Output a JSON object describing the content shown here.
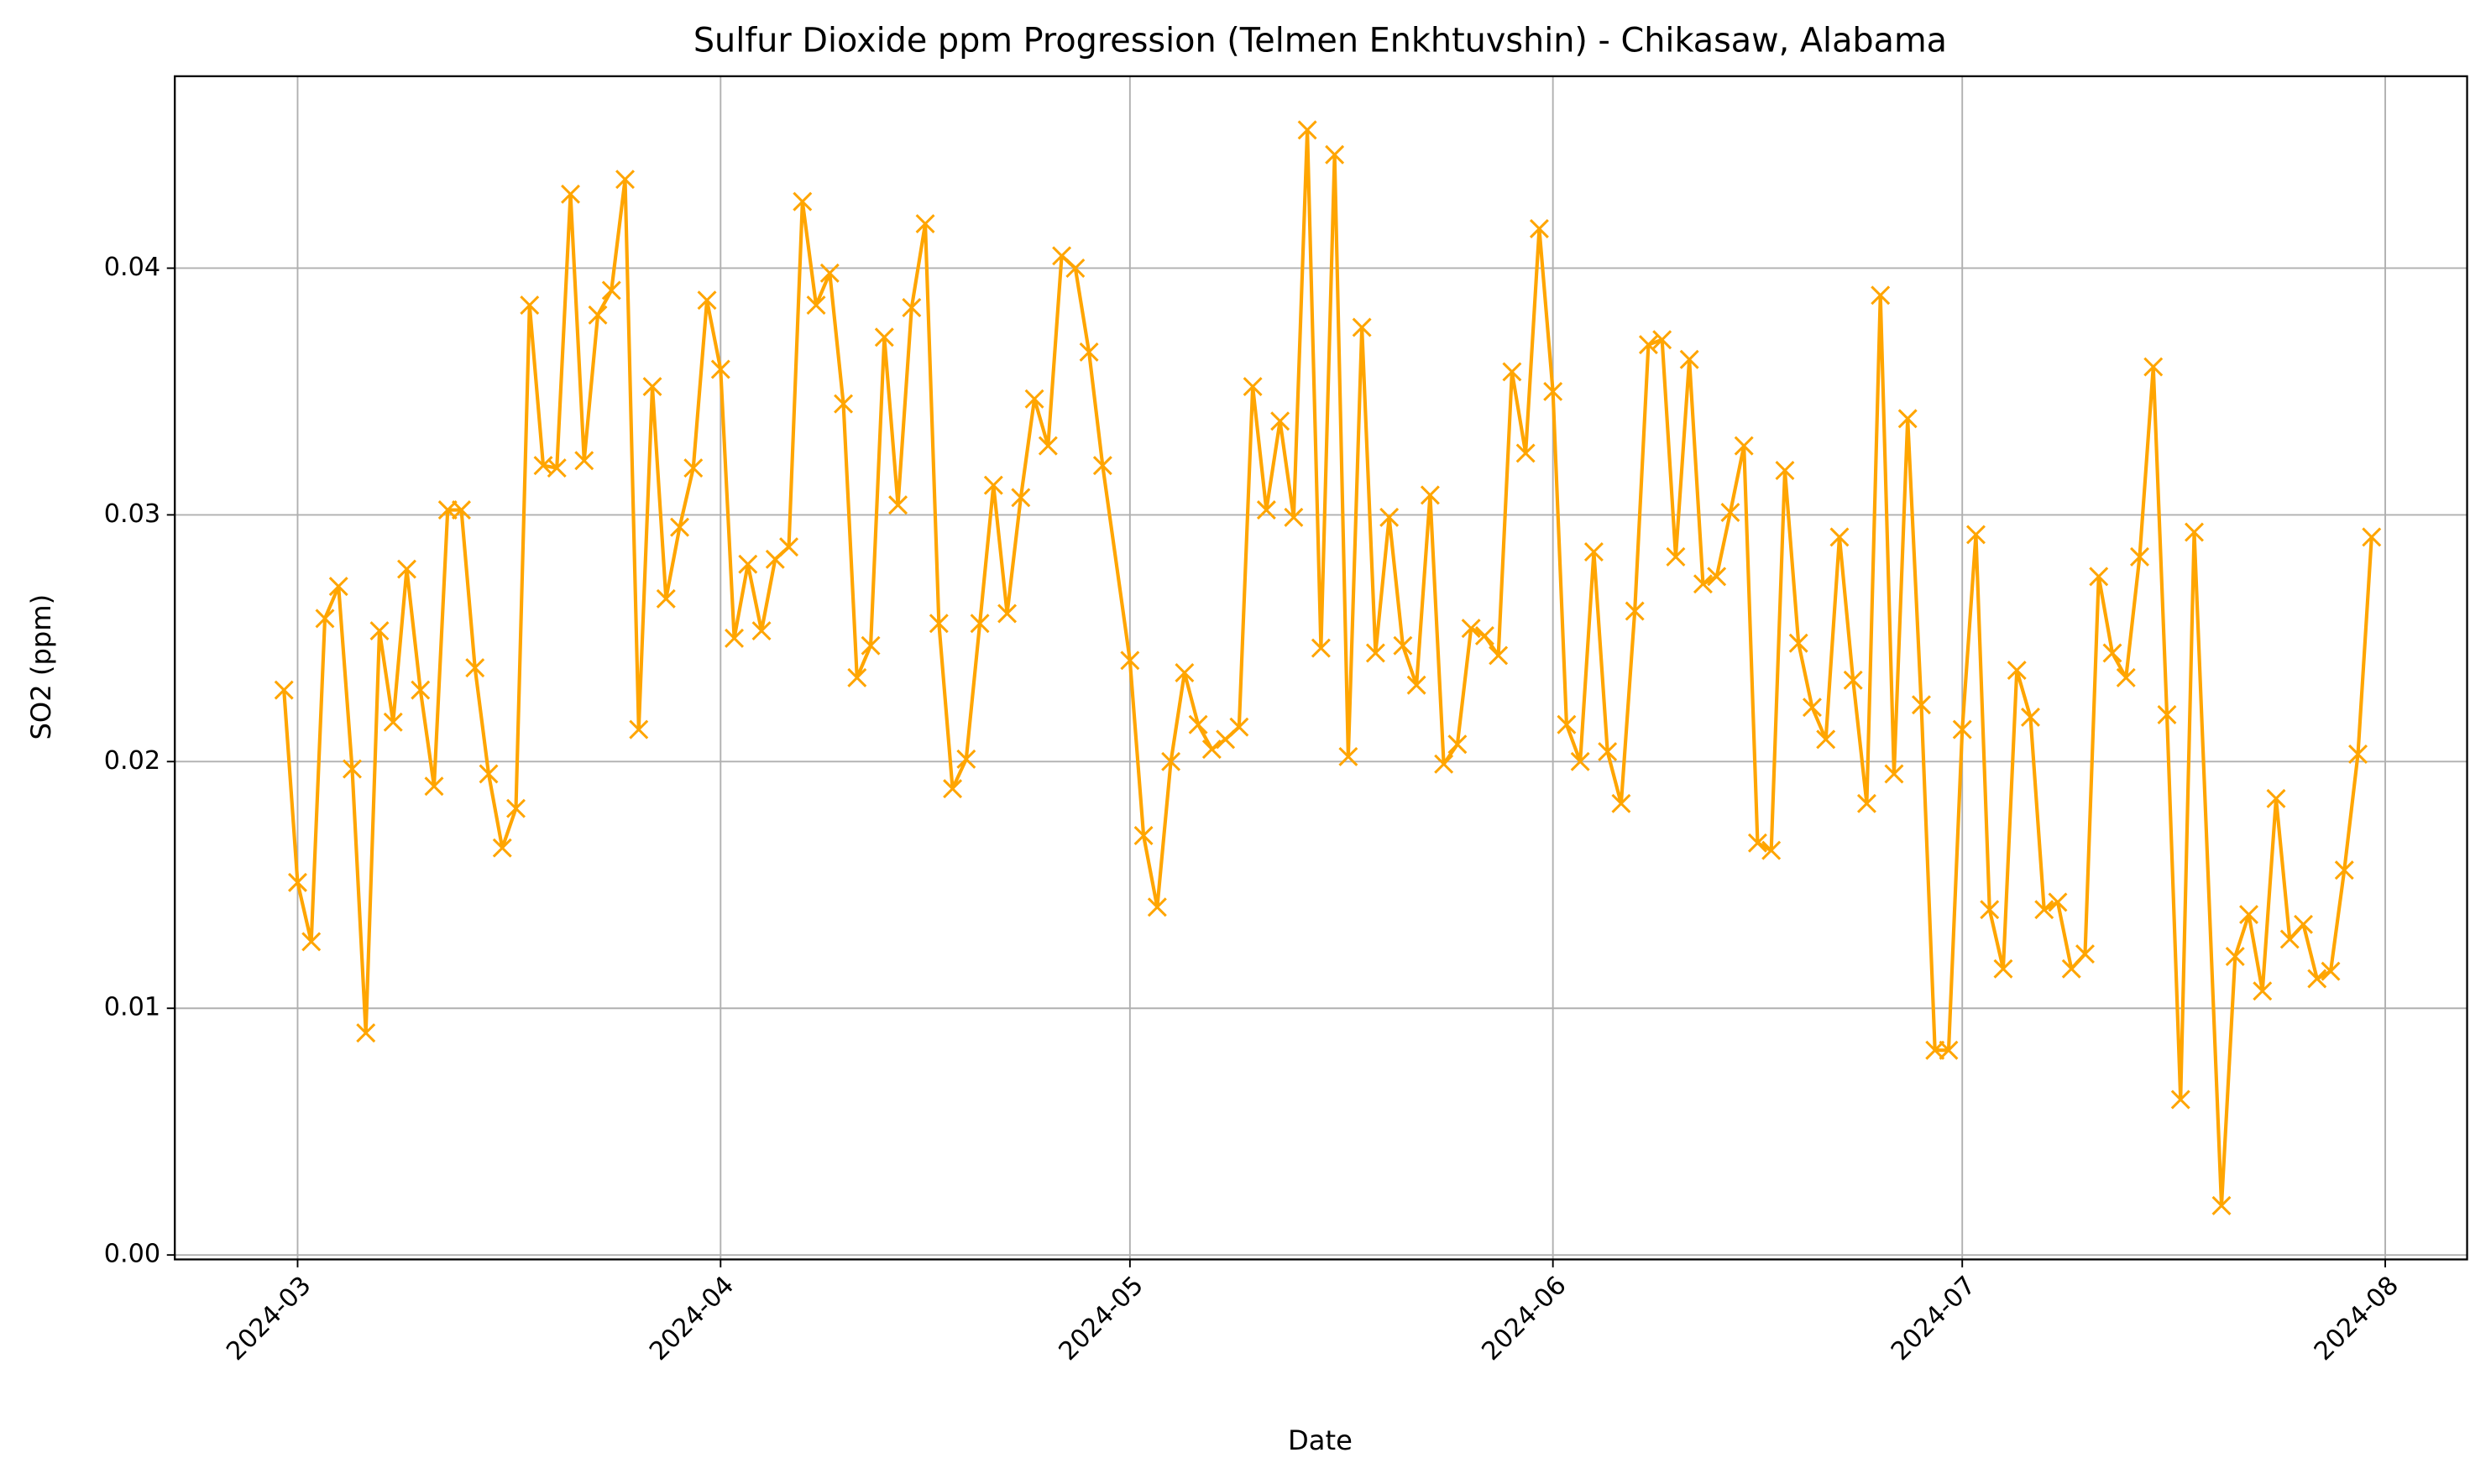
{
  "chart_data": {
    "type": "line",
    "title": "Sulfur Dioxide ppm Progression (Telmen Enkhtuvshin) - Chikasaw, Alabama",
    "xlabel": "Date",
    "ylabel": "SO2 (ppm)",
    "x": [
      "2024-02-29",
      "2024-03-01",
      "2024-03-02",
      "2024-03-03",
      "2024-03-04",
      "2024-03-05",
      "2024-03-06",
      "2024-03-07",
      "2024-03-08",
      "2024-03-09",
      "2024-03-10",
      "2024-03-11",
      "2024-03-12",
      "2024-03-13",
      "2024-03-14",
      "2024-03-15",
      "2024-03-16",
      "2024-03-17",
      "2024-03-18",
      "2024-03-19",
      "2024-03-20",
      "2024-03-21",
      "2024-03-22",
      "2024-03-23",
      "2024-03-24",
      "2024-03-25",
      "2024-03-26",
      "2024-03-27",
      "2024-03-28",
      "2024-03-29",
      "2024-03-30",
      "2024-03-31",
      "2024-04-01",
      "2024-04-02",
      "2024-04-03",
      "2024-04-04",
      "2024-04-05",
      "2024-04-06",
      "2024-04-07",
      "2024-04-08",
      "2024-04-09",
      "2024-04-10",
      "2024-04-11",
      "2024-04-12",
      "2024-04-13",
      "2024-04-14",
      "2024-04-15",
      "2024-04-16",
      "2024-04-17",
      "2024-04-18",
      "2024-04-19",
      "2024-04-20",
      "2024-04-21",
      "2024-04-22",
      "2024-04-23",
      "2024-04-24",
      "2024-04-25",
      "2024-04-26",
      "2024-04-27",
      "2024-04-28",
      "2024-04-29",
      "2024-05-01",
      "2024-05-02",
      "2024-05-03",
      "2024-05-04",
      "2024-05-05",
      "2024-05-06",
      "2024-05-07",
      "2024-05-08",
      "2024-05-09",
      "2024-05-10",
      "2024-05-11",
      "2024-05-12",
      "2024-05-13",
      "2024-05-14",
      "2024-05-15",
      "2024-05-16",
      "2024-05-17",
      "2024-05-18",
      "2024-05-19",
      "2024-05-20",
      "2024-05-21",
      "2024-05-22",
      "2024-05-23",
      "2024-05-24",
      "2024-05-25",
      "2024-05-26",
      "2024-05-27",
      "2024-05-28",
      "2024-05-29",
      "2024-05-30",
      "2024-05-31",
      "2024-06-01",
      "2024-06-02",
      "2024-06-03",
      "2024-06-04",
      "2024-06-05",
      "2024-06-06",
      "2024-06-07",
      "2024-06-08",
      "2024-06-09",
      "2024-06-10",
      "2024-06-11",
      "2024-06-12",
      "2024-06-13",
      "2024-06-14",
      "2024-06-15",
      "2024-06-16",
      "2024-06-17",
      "2024-06-18",
      "2024-06-19",
      "2024-06-20",
      "2024-06-21",
      "2024-06-22",
      "2024-06-23",
      "2024-06-24",
      "2024-06-25",
      "2024-06-26",
      "2024-06-27",
      "2024-06-28",
      "2024-06-29",
      "2024-06-30",
      "2024-07-01",
      "2024-07-02",
      "2024-07-03",
      "2024-07-04",
      "2024-07-05",
      "2024-07-06",
      "2024-07-07",
      "2024-07-08",
      "2024-07-09",
      "2024-07-10",
      "2024-07-11",
      "2024-07-12",
      "2024-07-13",
      "2024-07-14",
      "2024-07-15",
      "2024-07-16",
      "2024-07-17",
      "2024-07-18",
      "2024-07-20",
      "2024-07-21",
      "2024-07-22",
      "2024-07-23",
      "2024-07-24",
      "2024-07-25",
      "2024-07-26",
      "2024-07-27",
      "2024-07-28",
      "2024-07-29",
      "2024-07-30",
      "2024-07-31"
    ],
    "values": [
      0.0229,
      0.0151,
      0.0127,
      0.0258,
      0.0271,
      0.0197,
      0.009,
      0.0253,
      0.0216,
      0.0278,
      0.0229,
      0.019,
      0.0302,
      0.0302,
      0.0238,
      0.0195,
      0.0165,
      0.0181,
      0.0385,
      0.032,
      0.0319,
      0.043,
      0.0322,
      0.0381,
      0.0391,
      0.0436,
      0.0213,
      0.0352,
      0.0266,
      0.0295,
      0.0319,
      0.0387,
      0.0359,
      0.025,
      0.028,
      0.0253,
      0.0282,
      0.0287,
      0.0427,
      0.0385,
      0.0398,
      0.0345,
      0.0234,
      0.0247,
      0.0372,
      0.0304,
      0.0384,
      0.0418,
      0.0256,
      0.0189,
      0.0201,
      0.0256,
      0.0312,
      0.026,
      0.0307,
      0.0347,
      0.0328,
      0.0405,
      0.04,
      0.0366,
      0.032,
      0.0241,
      0.017,
      0.0141,
      0.02,
      0.0236,
      0.0215,
      0.0205,
      0.0209,
      0.0214,
      0.0352,
      0.0302,
      0.0338,
      0.0299,
      0.0456,
      0.0246,
      0.0446,
      0.0202,
      0.0376,
      0.0244,
      0.0299,
      0.0247,
      0.0231,
      0.0308,
      0.0199,
      0.0207,
      0.0254,
      0.0251,
      0.0243,
      0.0358,
      0.0325,
      0.0416,
      0.035,
      0.0215,
      0.02,
      0.0285,
      0.0204,
      0.0183,
      0.0261,
      0.0369,
      0.0371,
      0.0283,
      0.0363,
      0.0272,
      0.0275,
      0.0301,
      0.0328,
      0.0167,
      0.0164,
      0.0318,
      0.0248,
      0.0222,
      0.0209,
      0.0291,
      0.0233,
      0.0183,
      0.0389,
      0.0195,
      0.0339,
      0.0223,
      0.0083,
      0.0083,
      0.0213,
      0.0292,
      0.014,
      0.0116,
      0.0237,
      0.0218,
      0.014,
      0.0143,
      0.0116,
      0.0122,
      0.0275,
      0.0244,
      0.0234,
      0.0283,
      0.036,
      0.0219,
      0.0063,
      0.0293,
      0.002,
      0.0121,
      0.0138,
      0.0107,
      0.0185,
      0.0128,
      0.0134,
      0.0112,
      0.0115,
      0.0156,
      0.0203,
      0.0291
    ],
    "color": "#ffa500",
    "marker": "x",
    "xlim": [
      "2024-02-21",
      "2024-08-07"
    ],
    "xticks": [
      {
        "value": "2024-03-01",
        "label": "2024-03"
      },
      {
        "value": "2024-04-01",
        "label": "2024-04"
      },
      {
        "value": "2024-05-01",
        "label": "2024-05"
      },
      {
        "value": "2024-06-01",
        "label": "2024-06"
      },
      {
        "value": "2024-07-01",
        "label": "2024-07"
      },
      {
        "value": "2024-08-01",
        "label": "2024-08"
      }
    ],
    "ylim": [
      -0.00018,
      0.04778
    ],
    "yticks": [
      {
        "value": 0,
        "label": "0.00"
      },
      0.01,
      0.02,
      0.03,
      0.04
    ],
    "grid": true
  }
}
